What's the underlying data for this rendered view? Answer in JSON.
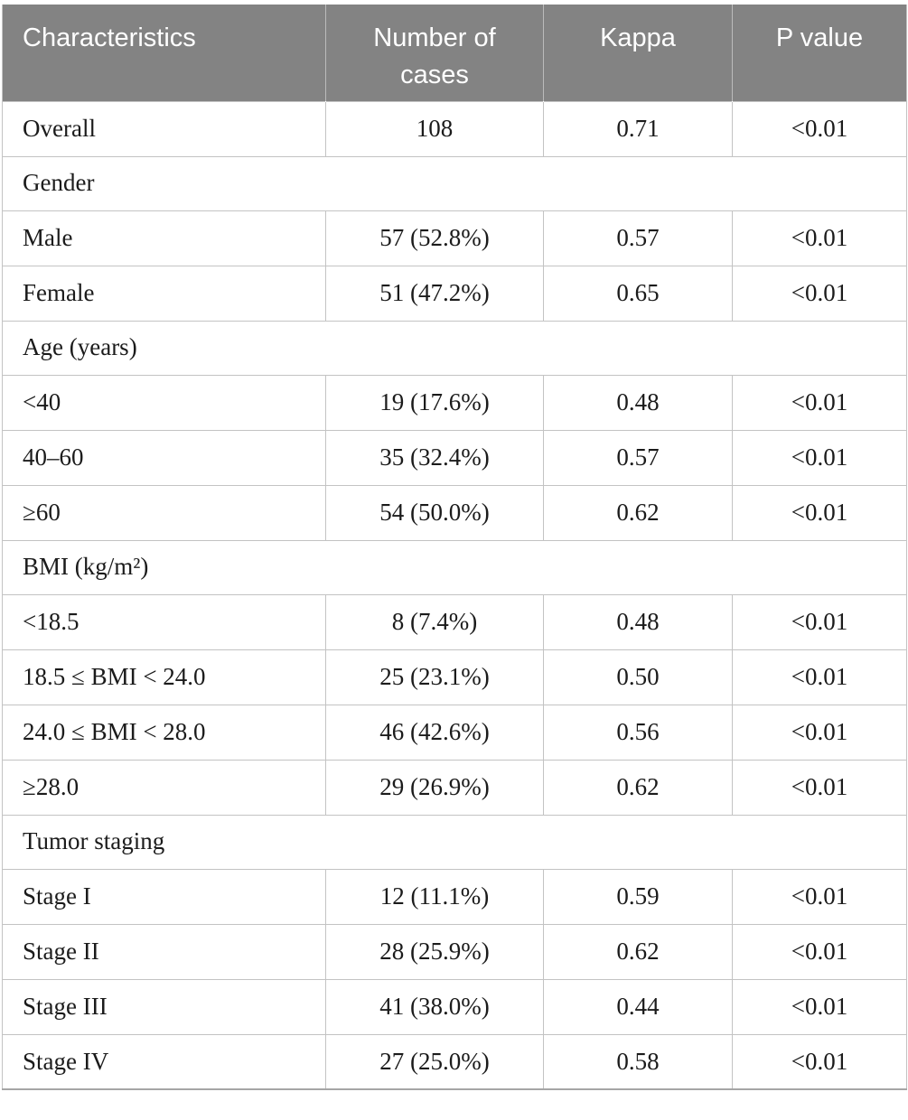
{
  "page": {
    "background": "#ffffff"
  },
  "table": {
    "header": {
      "bg": "#838383",
      "text_color": "#ffffff",
      "columns": [
        "Characteristics",
        "Number of cases",
        "Kappa",
        "P value"
      ]
    },
    "rows": [
      {
        "type": "data",
        "cells": [
          "Overall",
          "108",
          "0.71",
          "<0.01"
        ]
      },
      {
        "type": "section",
        "label": "Gender"
      },
      {
        "type": "data",
        "cells": [
          "Male",
          "57 (52.8%)",
          "0.57",
          "<0.01"
        ]
      },
      {
        "type": "data",
        "cells": [
          "Female",
          "51 (47.2%)",
          "0.65",
          "<0.01"
        ]
      },
      {
        "type": "section",
        "label": "Age (years)"
      },
      {
        "type": "data",
        "cells": [
          "<40",
          "19 (17.6%)",
          "0.48",
          "<0.01"
        ]
      },
      {
        "type": "data",
        "cells": [
          "40–60",
          "35 (32.4%)",
          "0.57",
          "<0.01"
        ]
      },
      {
        "type": "data",
        "cells": [
          "≥60",
          "54 (50.0%)",
          "0.62",
          "<0.01"
        ]
      },
      {
        "type": "section",
        "label": "BMI (kg/m²)"
      },
      {
        "type": "data",
        "cells": [
          "<18.5",
          "8 (7.4%)",
          "0.48",
          "<0.01"
        ]
      },
      {
        "type": "data",
        "cells": [
          "18.5 ≤ BMI < 24.0",
          "25 (23.1%)",
          "0.50",
          "<0.01"
        ]
      },
      {
        "type": "data",
        "cells": [
          "24.0 ≤ BMI < 28.0",
          "46 (42.6%)",
          "0.56",
          "<0.01"
        ]
      },
      {
        "type": "data",
        "cells": [
          "≥28.0",
          "29 (26.9%)",
          "0.62",
          "<0.01"
        ]
      },
      {
        "type": "section",
        "label": "Tumor staging"
      },
      {
        "type": "data",
        "cells": [
          "Stage I",
          "12 (11.1%)",
          "0.59",
          "<0.01"
        ]
      },
      {
        "type": "data",
        "cells": [
          "Stage II",
          "28 (25.9%)",
          "0.62",
          "<0.01"
        ]
      },
      {
        "type": "data",
        "cells": [
          "Stage III",
          "41 (38.0%)",
          "0.44",
          "<0.01"
        ]
      },
      {
        "type": "data",
        "cells": [
          "Stage IV",
          "27 (25.0%)",
          "0.58",
          "<0.01"
        ]
      }
    ]
  }
}
